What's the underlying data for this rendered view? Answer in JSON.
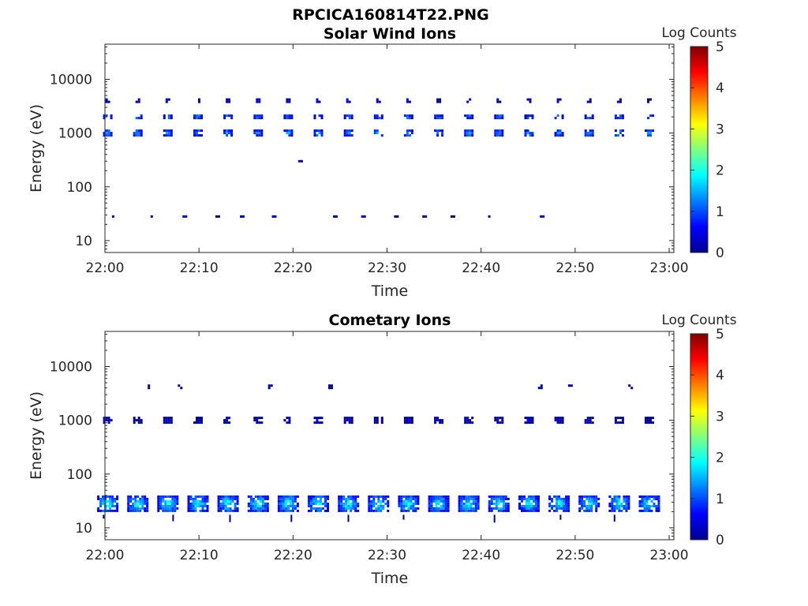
{
  "figure_title": "RPCICA160814T22.PNG",
  "chart_data": [
    {
      "type": "heatmap",
      "title": "Solar Wind Ions",
      "xlabel": "Time",
      "ylabel": "Energy (eV)",
      "y_scale": "log",
      "x_tick_labels": [
        "22:00",
        "22:10",
        "22:20",
        "22:30",
        "22:40",
        "22:50",
        "23:00"
      ],
      "y_tick_labels": [
        "10",
        "100",
        "1000",
        "10000"
      ],
      "colorbar": {
        "label": "Log Counts",
        "ticks": [
          "0",
          "1",
          "2",
          "3",
          "4",
          "5"
        ],
        "range": [
          0,
          5
        ],
        "colormap": "jet"
      },
      "xlim_minutes": [
        0,
        60.5
      ],
      "ylim_ev": [
        6,
        45000
      ],
      "cycle_start_minutes": [
        0.3,
        3.5,
        6.7,
        9.9,
        13.1,
        16.3,
        19.5,
        22.7,
        25.9,
        29.1,
        32.3,
        35.5,
        38.7,
        41.9,
        45.1,
        48.3,
        51.5,
        54.7,
        57.9
      ],
      "clusters": [
        {
          "energy_ev": 1000,
          "log_counts": 1.3
        },
        {
          "energy_ev": 2000,
          "log_counts": 1.1
        },
        {
          "energy_ev": 4000,
          "log_counts": 0.4
        },
        {
          "energy_ev": 28,
          "log_counts": 0.2,
          "cycle_minutes": [
            1.0,
            5.1,
            8.5,
            12.0,
            14.6,
            18.0,
            24.5,
            27.5,
            31.0,
            34.0,
            37.0,
            41.0,
            46.5
          ]
        },
        {
          "energy_ev": 300,
          "log_counts": 0.3,
          "cycle_minutes": [
            20.8
          ]
        }
      ]
    },
    {
      "type": "heatmap",
      "title": "Cometary Ions",
      "xlabel": "Time",
      "ylabel": "Energy (eV)",
      "y_scale": "log",
      "x_tick_labels": [
        "22:00",
        "22:10",
        "22:20",
        "22:30",
        "22:40",
        "22:50",
        "23:00"
      ],
      "y_tick_labels": [
        "10",
        "100",
        "1000",
        "10000"
      ],
      "colorbar": {
        "label": "Log Counts",
        "ticks": [
          "0",
          "1",
          "2",
          "3",
          "4",
          "5"
        ],
        "range": [
          0,
          5
        ],
        "colormap": "jet"
      },
      "xlim_minutes": [
        0,
        60.5
      ],
      "ylim_ev": [
        6,
        45000
      ],
      "cycle_start_minutes": [
        0.3,
        3.5,
        6.7,
        9.9,
        13.1,
        16.3,
        19.5,
        22.7,
        25.9,
        29.1,
        32.3,
        35.5,
        38.7,
        41.9,
        45.1,
        48.3,
        51.5,
        54.7,
        57.9
      ],
      "clusters": [
        {
          "energy_ev": 28,
          "log_counts": 1.7
        },
        {
          "energy_ev": 1000,
          "log_counts": 0.2
        },
        {
          "energy_ev": 4200,
          "log_counts": 0.2,
          "cycle_minutes": [
            4.8,
            8.0,
            17.6,
            24.0,
            46.3,
            49.5,
            55.9
          ]
        }
      ]
    }
  ]
}
